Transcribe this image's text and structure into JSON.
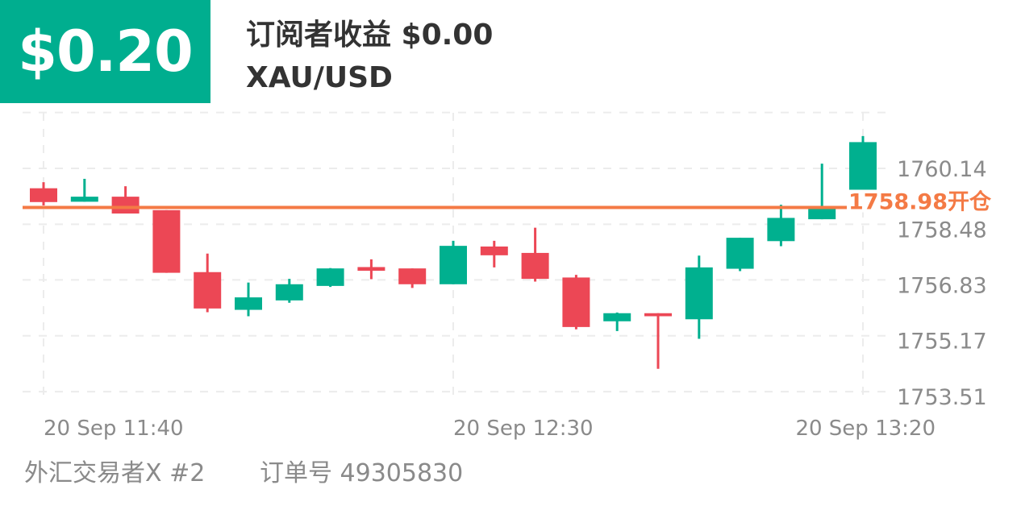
{
  "header": {
    "pnl": "$0.20",
    "title": "订阅者收益 $0.00",
    "symbol": "XAU/USD"
  },
  "footer": {
    "trader": "外汇交易者X #2",
    "order": "订单号 49305830"
  },
  "colors": {
    "up": "#00b08f",
    "down": "#ec4755",
    "open_line": "#f47a45",
    "pnl_bg": "#00ae8f"
  },
  "chart_data": {
    "type": "candlestick",
    "y_ticks": [
      "1760.14",
      "1758.48",
      "1756.83",
      "1755.17",
      "1753.51"
    ],
    "ylim": [
      1753.51,
      1761.8
    ],
    "x_labels": [
      {
        "index": 0,
        "label": "20 Sep  11:40"
      },
      {
        "index": 10,
        "label": "20 Sep  12:30"
      },
      {
        "index": 20,
        "label": "20 Sep  13:20"
      }
    ],
    "grid": true,
    "open_line": {
      "value": 1758.98,
      "label": "1758.98开仓"
    },
    "candles": [
      {
        "o": 1759.55,
        "h": 1759.73,
        "l": 1759.04,
        "c": 1759.14
      },
      {
        "o": 1759.15,
        "h": 1759.83,
        "l": 1759.15,
        "c": 1759.3
      },
      {
        "o": 1759.3,
        "h": 1759.61,
        "l": 1758.8,
        "c": 1758.8
      },
      {
        "o": 1758.9,
        "h": 1758.9,
        "l": 1757.04,
        "c": 1757.04
      },
      {
        "o": 1757.06,
        "h": 1757.61,
        "l": 1755.87,
        "c": 1755.98
      },
      {
        "o": 1755.94,
        "h": 1756.75,
        "l": 1755.75,
        "c": 1756.31
      },
      {
        "o": 1756.22,
        "h": 1756.86,
        "l": 1756.15,
        "c": 1756.7
      },
      {
        "o": 1756.65,
        "h": 1757.18,
        "l": 1756.62,
        "c": 1757.17
      },
      {
        "o": 1757.21,
        "h": 1757.44,
        "l": 1756.85,
        "c": 1757.1
      },
      {
        "o": 1757.17,
        "h": 1757.17,
        "l": 1756.59,
        "c": 1756.7
      },
      {
        "o": 1756.7,
        "h": 1757.99,
        "l": 1756.7,
        "c": 1757.84
      },
      {
        "o": 1757.82,
        "h": 1757.99,
        "l": 1757.2,
        "c": 1757.56
      },
      {
        "o": 1757.63,
        "h": 1758.38,
        "l": 1756.78,
        "c": 1756.86
      },
      {
        "o": 1756.9,
        "h": 1756.98,
        "l": 1755.36,
        "c": 1755.43
      },
      {
        "o": 1755.6,
        "h": 1755.86,
        "l": 1755.31,
        "c": 1755.84
      },
      {
        "o": 1755.84,
        "h": 1755.84,
        "l": 1754.19,
        "c": 1755.75
      },
      {
        "o": 1755.66,
        "h": 1757.55,
        "l": 1755.08,
        "c": 1757.2
      },
      {
        "o": 1757.16,
        "h": 1758.08,
        "l": 1757.09,
        "c": 1758.08
      },
      {
        "o": 1757.98,
        "h": 1759.06,
        "l": 1757.83,
        "c": 1758.67
      },
      {
        "o": 1758.63,
        "h": 1760.28,
        "l": 1758.63,
        "c": 1758.94
      },
      {
        "o": 1759.48,
        "h": 1761.1,
        "l": 1759.48,
        "c": 1760.92
      }
    ]
  }
}
